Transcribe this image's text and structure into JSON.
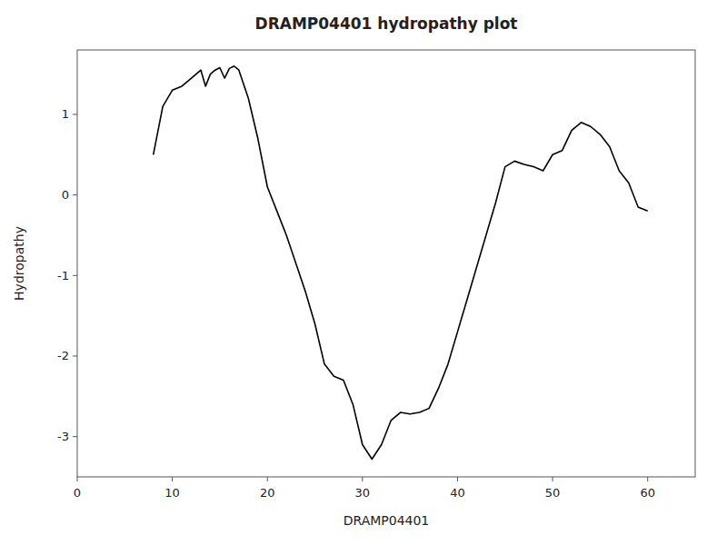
{
  "chart_data": {
    "type": "line",
    "title": "DRAMP04401 hydropathy plot",
    "xlabel": "DRAMP04401",
    "ylabel": "Hydropathy",
    "xlim": [
      0,
      65
    ],
    "ylim": [
      -3.5,
      1.8
    ],
    "xticks": [
      0,
      10,
      20,
      30,
      40,
      50,
      60
    ],
    "yticks": [
      -3,
      -2,
      -1,
      0,
      1
    ],
    "color": "black",
    "grid": false,
    "x": [
      8,
      9,
      10,
      11,
      12,
      13,
      13.5,
      14,
      14.5,
      15,
      15.5,
      16,
      16.5,
      17,
      18,
      19,
      20,
      21,
      22,
      23,
      24,
      25,
      26,
      27,
      28,
      29,
      30,
      31,
      32,
      33,
      34,
      35,
      36,
      37,
      38,
      39,
      40,
      41,
      42,
      43,
      44,
      45,
      46,
      47,
      48,
      49,
      50,
      51,
      52,
      53,
      54,
      55,
      56,
      57,
      58,
      59,
      60
    ],
    "values": [
      0.5,
      1.1,
      1.3,
      1.35,
      1.45,
      1.55,
      1.35,
      1.5,
      1.55,
      1.58,
      1.45,
      1.57,
      1.6,
      1.55,
      1.2,
      0.7,
      0.1,
      -0.2,
      -0.5,
      -0.85,
      -1.2,
      -1.6,
      -2.1,
      -2.25,
      -2.3,
      -2.6,
      -3.1,
      -3.28,
      -3.1,
      -2.8,
      -2.7,
      -2.72,
      -2.7,
      -2.65,
      -2.4,
      -2.1,
      -1.7,
      -1.3,
      -0.9,
      -0.5,
      -0.1,
      0.35,
      0.42,
      0.38,
      0.35,
      0.3,
      0.5,
      0.55,
      0.8,
      0.9,
      0.85,
      0.75,
      0.6,
      0.3,
      0.15,
      -0.15,
      -0.2
    ]
  }
}
